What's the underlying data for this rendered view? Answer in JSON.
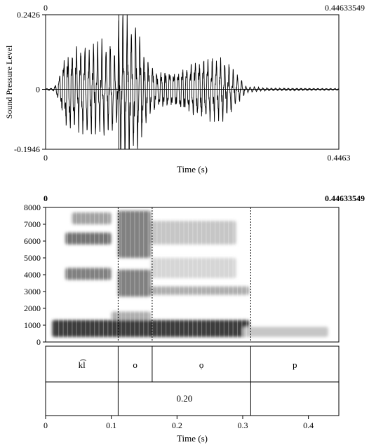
{
  "chart_data": [
    {
      "type": "line",
      "x_range_top": [
        "0",
        "0.44633549"
      ],
      "y_ticks": [
        "0.2426",
        "0",
        "-0.1946"
      ],
      "ylim": [
        -0.1946,
        0.2426
      ],
      "xlim": [
        0,
        0.4463
      ],
      "ylabel": "Sound Pressure Level",
      "x_ticks": [
        "0",
        "0.4463"
      ],
      "xlabel": "Time (s)",
      "cursor_time": 0.1115,
      "zero_line": true,
      "envelope": [
        {
          "t": 0.0,
          "amp": 0.003
        },
        {
          "t": 0.012,
          "amp": 0.004
        },
        {
          "t": 0.022,
          "amp": 0.05
        },
        {
          "t": 0.03,
          "amp": 0.12
        },
        {
          "t": 0.06,
          "amp": 0.138
        },
        {
          "t": 0.1,
          "amp": 0.145
        },
        {
          "t": 0.108,
          "amp": 0.1
        },
        {
          "t": 0.111,
          "amp": 0.21
        },
        {
          "t": 0.122,
          "amp": 0.23
        },
        {
          "t": 0.14,
          "amp": 0.19
        },
        {
          "t": 0.155,
          "amp": 0.1
        },
        {
          "t": 0.17,
          "amp": 0.06
        },
        {
          "t": 0.2,
          "amp": 0.06
        },
        {
          "t": 0.225,
          "amp": 0.09
        },
        {
          "t": 0.25,
          "amp": 0.1
        },
        {
          "t": 0.272,
          "amp": 0.095
        },
        {
          "t": 0.29,
          "amp": 0.05
        },
        {
          "t": 0.305,
          "amp": 0.01
        },
        {
          "t": 0.33,
          "amp": 0.005
        },
        {
          "t": 0.4463,
          "amp": 0.003
        }
      ]
    },
    {
      "type": "heatmap",
      "title_left": "0",
      "title_right": "0.44633549",
      "y_ticks": [
        "8000",
        "7000",
        "6000",
        "5000",
        "4000",
        "3000",
        "2000",
        "1000",
        "0"
      ],
      "ylim": [
        0,
        8000
      ],
      "xlim": [
        0,
        0.4463
      ],
      "boundaries": [
        0.1104,
        0.1622,
        0.3122
      ],
      "bands": [
        {
          "t0": 0.01,
          "t1": 0.31,
          "f0": 300,
          "f1": 1300,
          "dark": 0.85
        },
        {
          "t0": 0.3,
          "t1": 0.43,
          "f0": 300,
          "f1": 900,
          "dark": 0.25
        },
        {
          "t0": 0.1,
          "t1": 0.16,
          "f0": 1300,
          "f1": 1800,
          "dark": 0.35
        },
        {
          "t0": 0.03,
          "t1": 0.1,
          "f0": 3700,
          "f1": 4400,
          "dark": 0.55
        },
        {
          "t0": 0.11,
          "t1": 0.16,
          "f0": 2700,
          "f1": 4300,
          "dark": 0.55
        },
        {
          "t0": 0.16,
          "t1": 0.31,
          "f0": 2800,
          "f1": 3300,
          "dark": 0.35
        },
        {
          "t0": 0.03,
          "t1": 0.1,
          "f0": 5800,
          "f1": 6500,
          "dark": 0.6
        },
        {
          "t0": 0.04,
          "t1": 0.1,
          "f0": 7000,
          "f1": 7700,
          "dark": 0.4
        },
        {
          "t0": 0.11,
          "t1": 0.16,
          "f0": 5000,
          "f1": 7800,
          "dark": 0.55
        },
        {
          "t0": 0.16,
          "t1": 0.29,
          "f0": 5800,
          "f1": 7200,
          "dark": 0.25
        },
        {
          "t0": 0.16,
          "t1": 0.29,
          "f0": 3800,
          "f1": 5000,
          "dark": 0.18
        }
      ]
    },
    {
      "type": "table",
      "tier1": [
        {
          "start": 0.0,
          "end": 0.1104,
          "label": "k͡l"
        },
        {
          "start": 0.1104,
          "end": 0.1622,
          "label": "o"
        },
        {
          "start": 0.1622,
          "end": 0.3122,
          "label": "ọ"
        },
        {
          "start": 0.3122,
          "end": 0.4463,
          "label": "p"
        }
      ],
      "tier2": [
        {
          "start": 0.0,
          "end": 0.1104,
          "label": ""
        },
        {
          "start": 0.1104,
          "end": 0.3122,
          "label": "0.20"
        },
        {
          "start": 0.3122,
          "end": 0.4463,
          "label": ""
        }
      ]
    }
  ],
  "time_axis": {
    "ticks": [
      "0",
      "0.1",
      "0.2",
      "0.3",
      "0.4"
    ],
    "values": [
      0,
      0.1,
      0.2,
      0.3,
      0.4
    ],
    "xlabel": "Time (s)"
  }
}
